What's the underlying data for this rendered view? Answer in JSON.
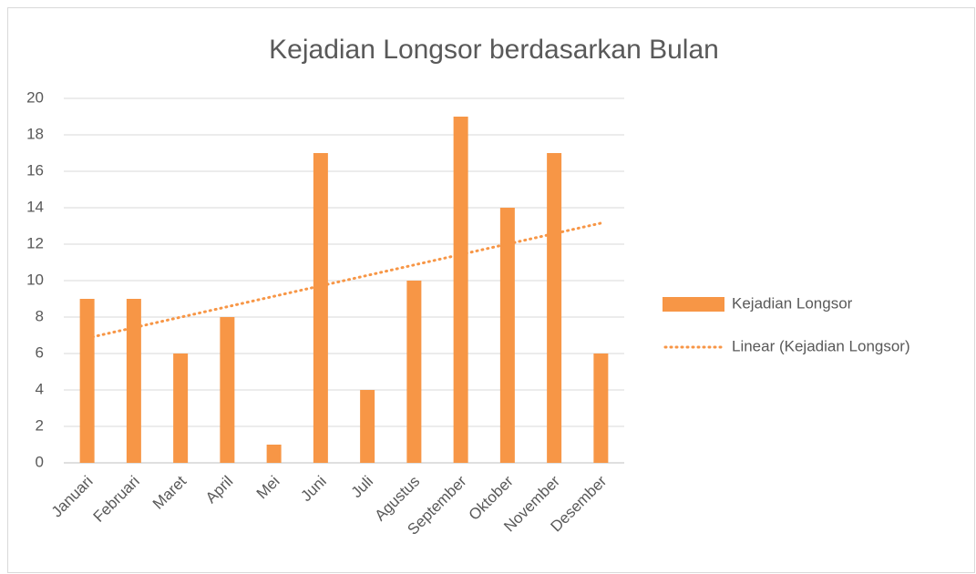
{
  "chart_data": {
    "type": "bar",
    "title": "Kejadian Longsor berdasarkan Bulan",
    "categories": [
      "Januari",
      "Februari",
      "Maret",
      "April",
      "Mei",
      "Juni",
      "Juli",
      "Agustus",
      "September",
      "Oktober",
      "November",
      "Desember"
    ],
    "series": [
      {
        "name": "Kejadian Longsor",
        "color": "#f79646",
        "values": [
          9,
          9,
          6,
          8,
          1,
          17,
          4,
          10,
          19,
          14,
          17,
          6
        ]
      }
    ],
    "trendline": {
      "type": "linear",
      "label": "Linear (Kejadian Longsor)"
    },
    "ylim": [
      0,
      20
    ],
    "yticks": [
      0,
      2,
      4,
      6,
      8,
      10,
      12,
      14,
      16,
      18,
      20
    ],
    "grid": true,
    "legend": "right"
  }
}
